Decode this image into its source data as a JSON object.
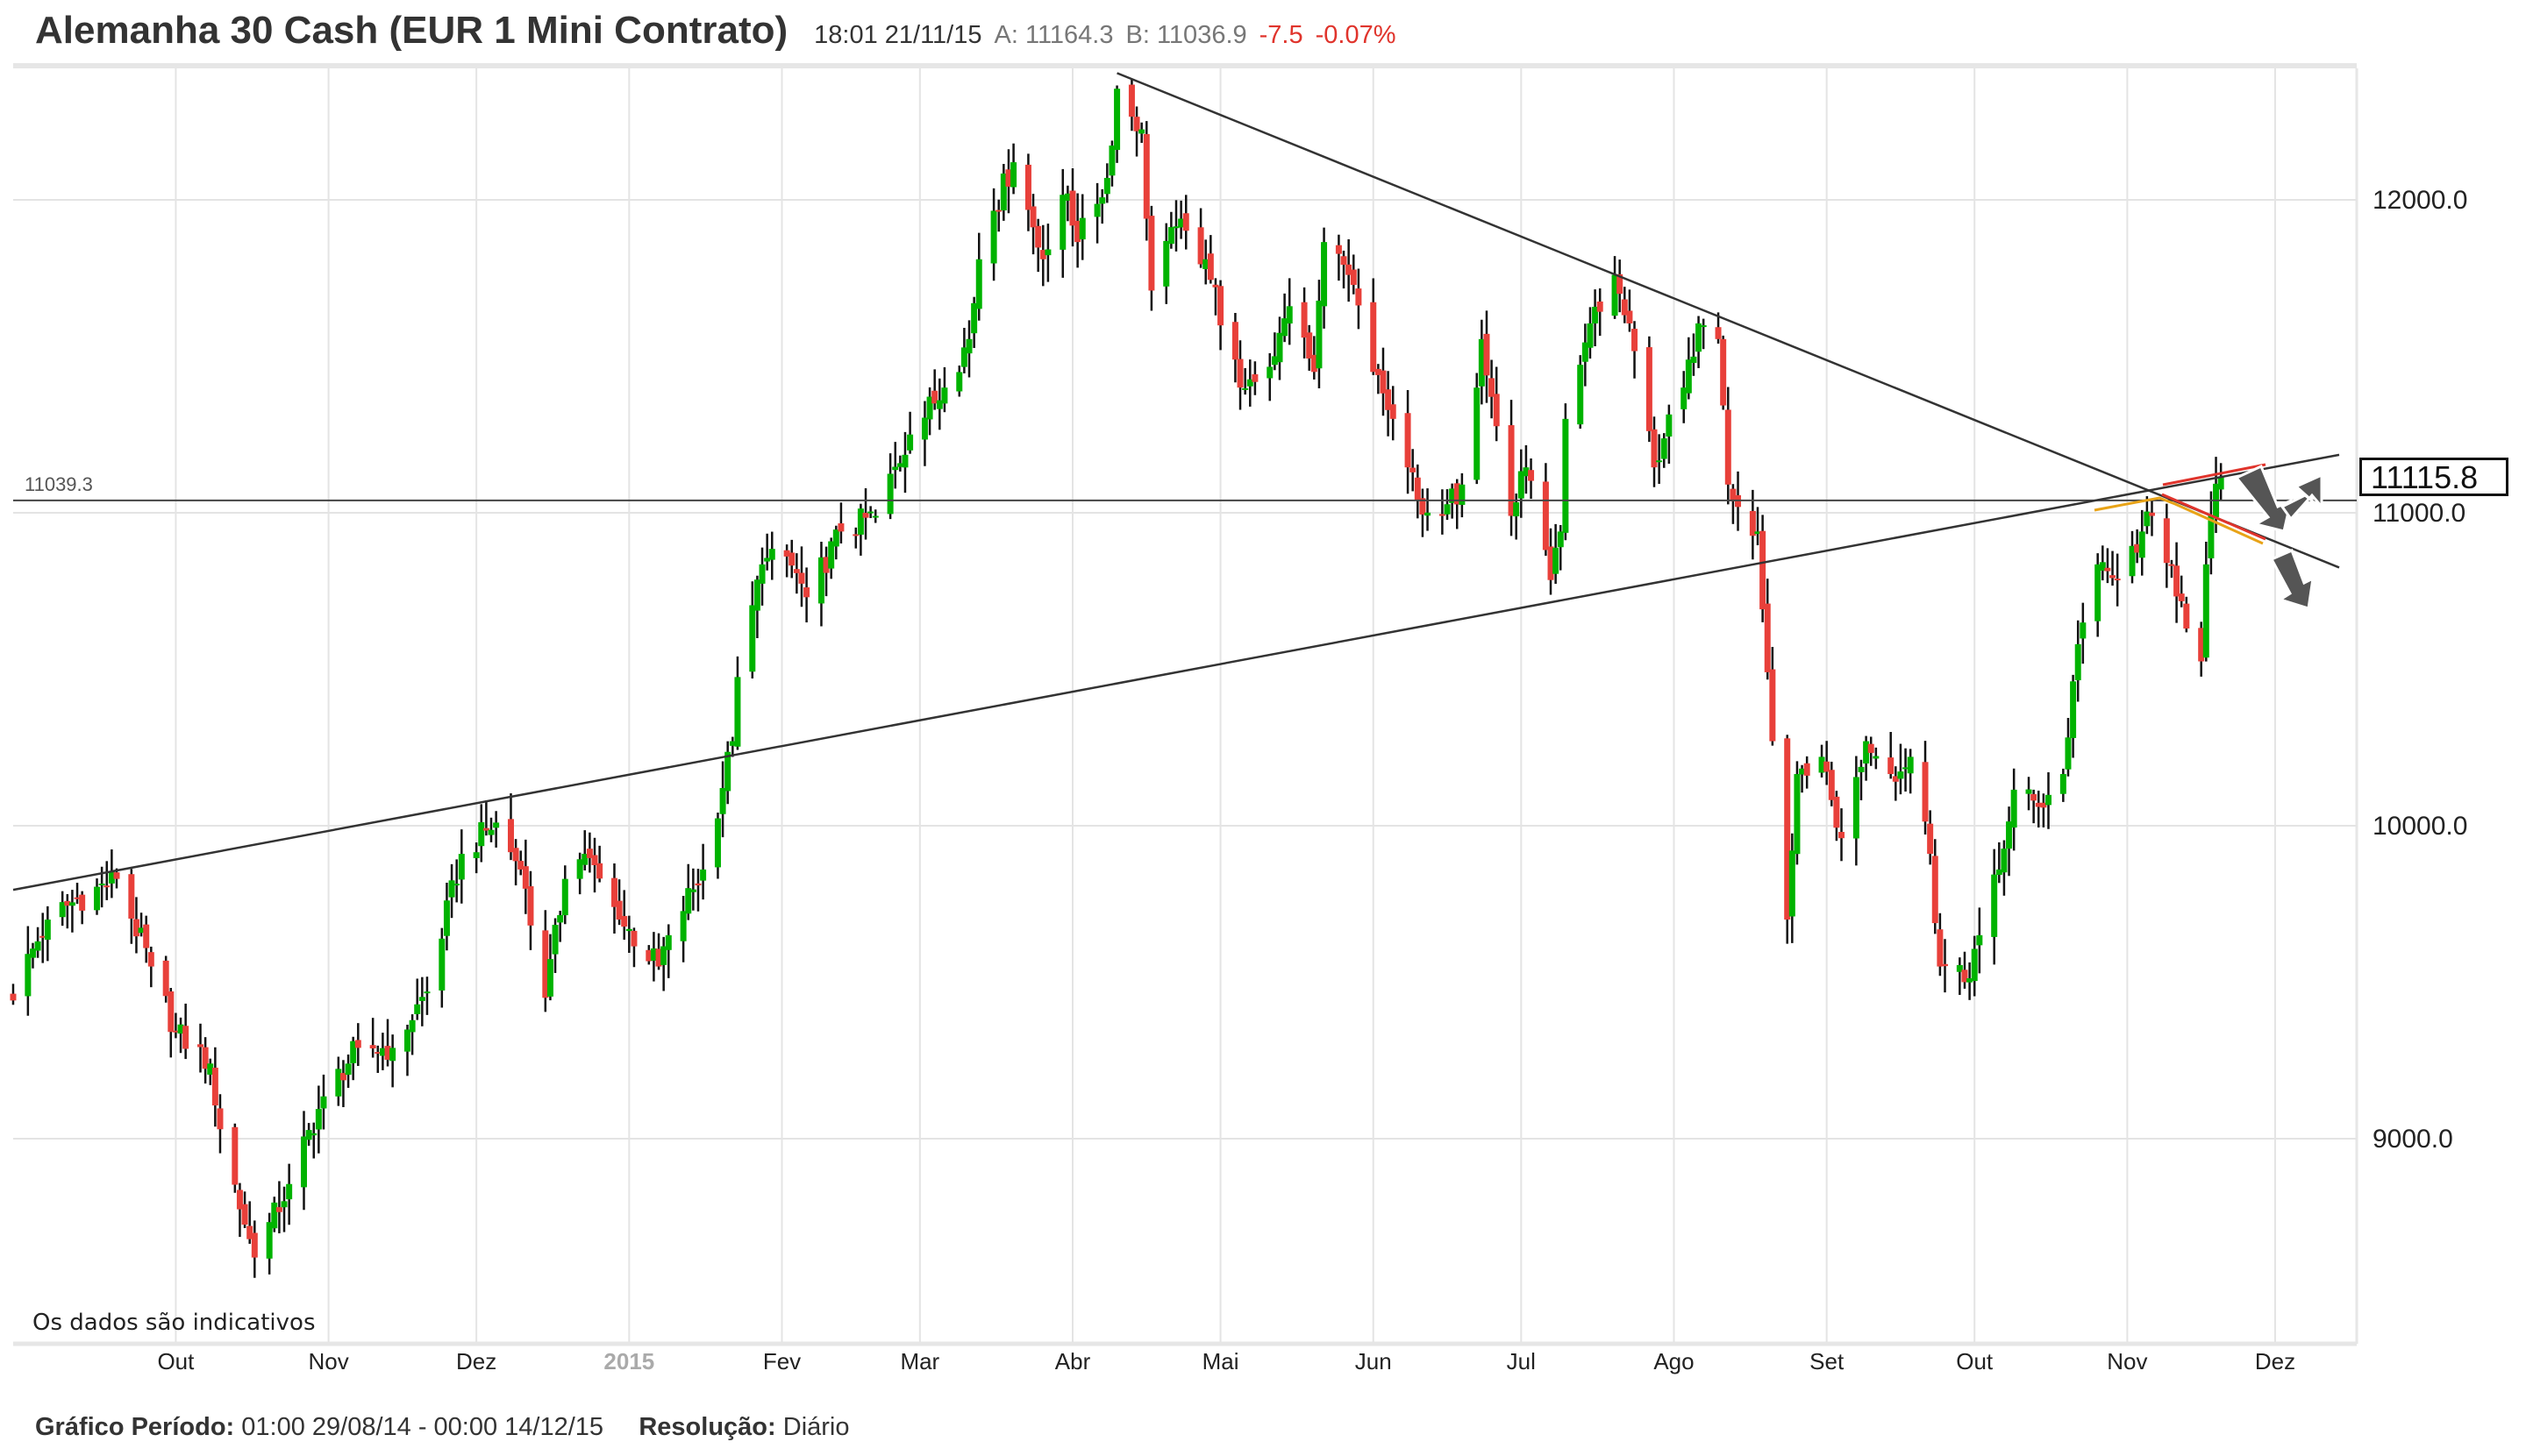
{
  "header": {
    "title": "Alemanha 30 Cash (EUR 1 Mini Contrato)",
    "time": "18:01 21/11/15",
    "ask": "A: 11164.3",
    "bid": "B: 11036.9",
    "change": "-7.5",
    "change_pct": "-0.07%"
  },
  "footer": {
    "period_label": "Gráfico Período:",
    "period_value": "01:00 29/08/14 - 00:00 14/12/15",
    "resolution_label": "Resolução:",
    "resolution_value": "Diário"
  },
  "note": "Os dados são indicativos",
  "current_price": "11115.8",
  "hline_label": "11039.3",
  "colors": {
    "up": "#00b300",
    "down": "#e8403a",
    "line": "#333333",
    "accent_red": "#e0342c",
    "accent_orange": "#e8a317",
    "arrow": "#555555"
  },
  "chart_data": {
    "type": "candlestick",
    "x_range": [
      "2014-08-29",
      "2015-12-14"
    ],
    "ylim": [
      8350,
      12420
    ],
    "y_ticks": [
      "12000.0",
      "11000.0",
      "10000.0",
      "9000.0"
    ],
    "y_tick_values": [
      12000,
      11000,
      10000,
      9000
    ],
    "x_ticks": [
      {
        "label": "Out",
        "date": "2014-10-01"
      },
      {
        "label": "Nov",
        "date": "2014-11-01"
      },
      {
        "label": "Dez",
        "date": "2014-12-01"
      },
      {
        "label": "2015",
        "date": "2015-01-01",
        "year": true
      },
      {
        "label": "Fev",
        "date": "2015-02-01"
      },
      {
        "label": "Mar",
        "date": "2015-03-01"
      },
      {
        "label": "Abr",
        "date": "2015-04-01"
      },
      {
        "label": "Mai",
        "date": "2015-05-01"
      },
      {
        "label": "Jun",
        "date": "2015-06-01"
      },
      {
        "label": "Jul",
        "date": "2015-07-01"
      },
      {
        "label": "Ago",
        "date": "2015-08-01"
      },
      {
        "label": "Set",
        "date": "2015-09-01"
      },
      {
        "label": "Out",
        "date": "2015-10-01"
      },
      {
        "label": "Nov",
        "date": "2015-11-01"
      },
      {
        "label": "Dez",
        "date": "2015-12-01"
      }
    ],
    "grid": true,
    "approx_closes": [
      [
        "2014-08-29",
        9470
      ],
      [
        "2014-09-05",
        9700
      ],
      [
        "2014-09-10",
        9755
      ],
      [
        "2014-09-19",
        9830
      ],
      [
        "2014-09-26",
        9550
      ],
      [
        "2014-10-01",
        9340
      ],
      [
        "2014-10-08",
        9240
      ],
      [
        "2014-10-10",
        9030
      ],
      [
        "2014-10-15",
        8725
      ],
      [
        "2014-10-17",
        8620
      ],
      [
        "2014-10-24",
        8855
      ],
      [
        "2014-10-31",
        9135
      ],
      [
        "2014-11-07",
        9290
      ],
      [
        "2014-11-14",
        9290
      ],
      [
        "2014-11-21",
        9470
      ],
      [
        "2014-11-28",
        9910
      ],
      [
        "2014-12-05",
        10010
      ],
      [
        "2014-12-10",
        9860
      ],
      [
        "2014-12-15",
        9450
      ],
      [
        "2014-12-19",
        9830
      ],
      [
        "2014-12-23",
        9910
      ],
      [
        "2014-12-30",
        9700
      ],
      [
        "2015-01-07",
        9550
      ],
      [
        "2015-01-09",
        9650
      ],
      [
        "2015-01-16",
        9860
      ],
      [
        "2015-01-22",
        10270
      ],
      [
        "2015-01-23",
        10475
      ],
      [
        "2015-01-28",
        10835
      ],
      [
        "2015-02-02",
        10860
      ],
      [
        "2015-02-06",
        10730
      ],
      [
        "2015-02-13",
        10940
      ],
      [
        "2015-02-20",
        10990
      ],
      [
        "2015-02-27",
        11250
      ],
      [
        "2015-03-06",
        11400
      ],
      [
        "2015-03-11",
        11555
      ],
      [
        "2015-03-13",
        11810
      ],
      [
        "2015-03-16",
        11965
      ],
      [
        "2015-03-20",
        12120
      ],
      [
        "2015-03-26",
        11810
      ],
      [
        "2015-03-31",
        12020
      ],
      [
        "2015-04-02",
        11865
      ],
      [
        "2015-04-08",
        12070
      ],
      [
        "2015-04-10",
        12355
      ],
      [
        "2015-04-15",
        12225
      ],
      [
        "2015-04-17",
        11710
      ],
      [
        "2015-04-22",
        11915
      ],
      [
        "2015-04-28",
        11810
      ],
      [
        "2015-05-05",
        11400
      ],
      [
        "2015-05-12",
        11500
      ],
      [
        "2015-05-15",
        11660
      ],
      [
        "2015-05-20",
        11450
      ],
      [
        "2015-05-22",
        11865
      ],
      [
        "2015-05-27",
        11760
      ],
      [
        "2015-06-01",
        11450
      ],
      [
        "2015-06-05",
        11300
      ],
      [
        "2015-06-10",
        11040
      ],
      [
        "2015-06-15",
        10990
      ],
      [
        "2015-06-19",
        11090
      ],
      [
        "2015-06-23",
        11555
      ],
      [
        "2015-06-29",
        10990
      ],
      [
        "2015-07-02",
        11145
      ],
      [
        "2015-07-07",
        10785
      ],
      [
        "2015-07-09",
        10940
      ],
      [
        "2015-07-10",
        11300
      ],
      [
        "2015-07-15",
        11605
      ],
      [
        "2015-07-20",
        11760
      ],
      [
        "2015-07-23",
        11605
      ],
      [
        "2015-07-28",
        11145
      ],
      [
        "2015-08-03",
        11400
      ],
      [
        "2015-08-06",
        11605
      ],
      [
        "2015-08-10",
        11555
      ],
      [
        "2015-08-12",
        11090
      ],
      [
        "2015-08-18",
        10940
      ],
      [
        "2015-08-21",
        10270
      ],
      [
        "2015-08-24",
        9700
      ],
      [
        "2015-08-26",
        10165
      ],
      [
        "2015-08-31",
        10220
      ],
      [
        "2015-09-04",
        9960
      ],
      [
        "2015-09-09",
        10270
      ],
      [
        "2015-09-14",
        10165
      ],
      [
        "2015-09-18",
        10220
      ],
      [
        "2015-09-22",
        9910
      ],
      [
        "2015-09-24",
        9550
      ],
      [
        "2015-09-29",
        9500
      ],
      [
        "2015-10-02",
        9650
      ],
      [
        "2015-10-06",
        9860
      ],
      [
        "2015-10-09",
        10115
      ],
      [
        "2015-10-14",
        10060
      ],
      [
        "2015-10-19",
        10165
      ],
      [
        "2015-10-22",
        10580
      ],
      [
        "2015-10-26",
        10835
      ],
      [
        "2015-10-30",
        10785
      ],
      [
        "2015-11-04",
        10940
      ],
      [
        "2015-11-06",
        10990
      ],
      [
        "2015-11-10",
        10835
      ],
      [
        "2015-11-13",
        10630
      ],
      [
        "2015-11-16",
        10525
      ],
      [
        "2015-11-17",
        10835
      ],
      [
        "2015-11-18",
        10990
      ],
      [
        "2015-11-20",
        11116
      ]
    ],
    "trendlines": [
      {
        "from": [
          "2015-04-10",
          12405
        ],
        "to": [
          "2015-12-14",
          10825
        ]
      },
      {
        "from": [
          "2014-08-29",
          9795
        ],
        "to": [
          "2015-12-14",
          11185
        ]
      }
    ],
    "horizontal_line": 11039.3
  }
}
